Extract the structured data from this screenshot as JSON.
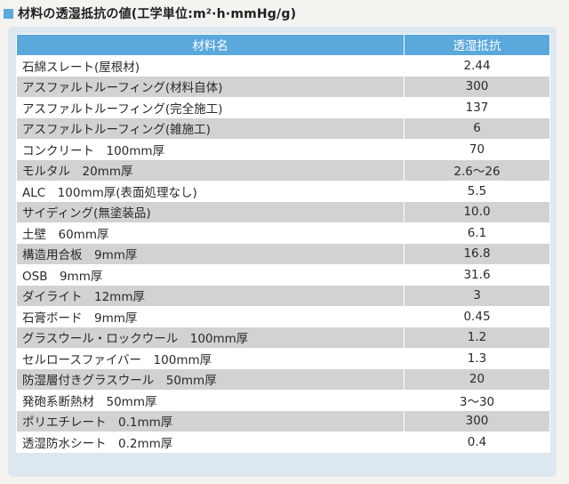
{
  "title": "材料の透湿抵抗の値(工学単位:m²·h·mmHg/g)",
  "colors": {
    "header": "#5aa8dc",
    "row_alt": "#d2d2d2",
    "panel": "#dde7f0"
  },
  "table": {
    "headers": [
      "材料名",
      "透湿抵抗"
    ],
    "rows": [
      [
        "石綿スレート(屋根材)",
        "2.44"
      ],
      [
        "アスファルトルーフィング(材料自体)",
        "300"
      ],
      [
        "アスファルトルーフィング(完全施工)",
        "137"
      ],
      [
        "アスファルトルーフィング(雑施工)",
        "6"
      ],
      [
        "コンクリート　100mm厚",
        "70"
      ],
      [
        "モルタル　20mm厚",
        "2.6〜26"
      ],
      [
        "ALC　100mm厚(表面処理なし)",
        "5.5"
      ],
      [
        "サイディング(無塗装品)",
        "10.0"
      ],
      [
        "土壁　60mm厚",
        "6.1"
      ],
      [
        "構造用合板　9mm厚",
        "16.8"
      ],
      [
        "OSB　9mm厚",
        "31.6"
      ],
      [
        "ダイライト　12mm厚",
        "3"
      ],
      [
        "石膏ボード　9mm厚",
        "0.45"
      ],
      [
        "グラスウール・ロックウール　100mm厚",
        "1.2"
      ],
      [
        "セルロースファイバー　100mm厚",
        "1.3"
      ],
      [
        "防湿層付きグラスウール　50mm厚",
        "20"
      ],
      [
        "発砲系断熱材　50mm厚",
        "3〜30"
      ],
      [
        "ポリエチレート　0.1mm厚",
        "300"
      ],
      [
        "透湿防水シート　0.2mm厚",
        "0.4"
      ]
    ]
  }
}
